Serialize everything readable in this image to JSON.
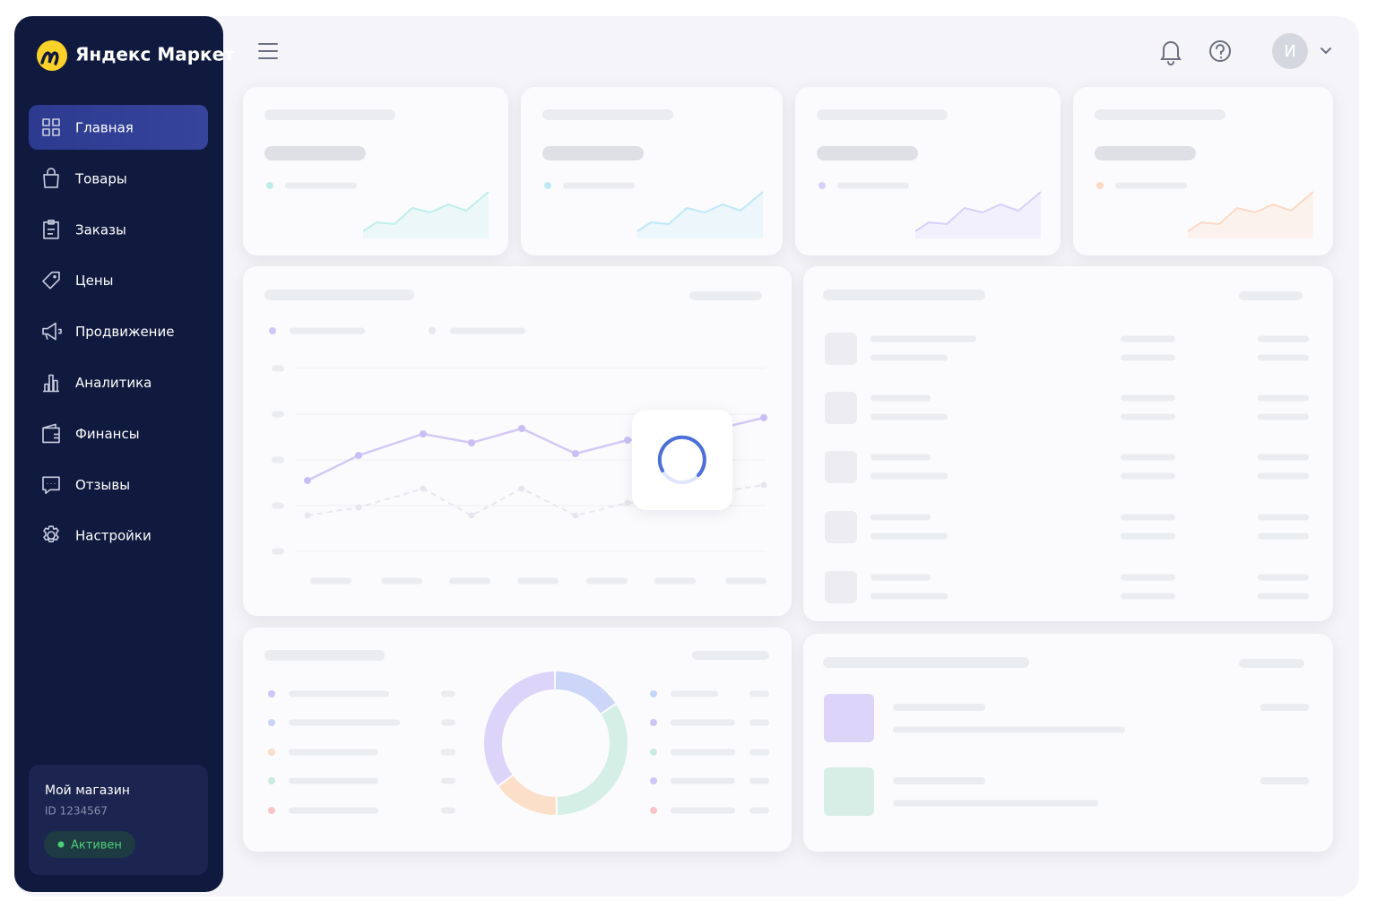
{
  "brand": "Яндекс Маркет",
  "nav": [
    {
      "label": "Главная",
      "active": true
    },
    {
      "label": "Товары",
      "active": false
    },
    {
      "label": "Заказы",
      "active": false
    },
    {
      "label": "Цены",
      "active": false
    },
    {
      "label": "Продвижение",
      "active": false
    },
    {
      "label": "Аналитика",
      "active": false
    },
    {
      "label": "Финансы",
      "active": false
    },
    {
      "label": "Отзывы",
      "active": false
    },
    {
      "label": "Настройки",
      "active": false
    }
  ],
  "user": {
    "initial": "И"
  },
  "store": {
    "name": "Мой магазин",
    "id": "ID 1234567",
    "status": "Активен"
  }
}
